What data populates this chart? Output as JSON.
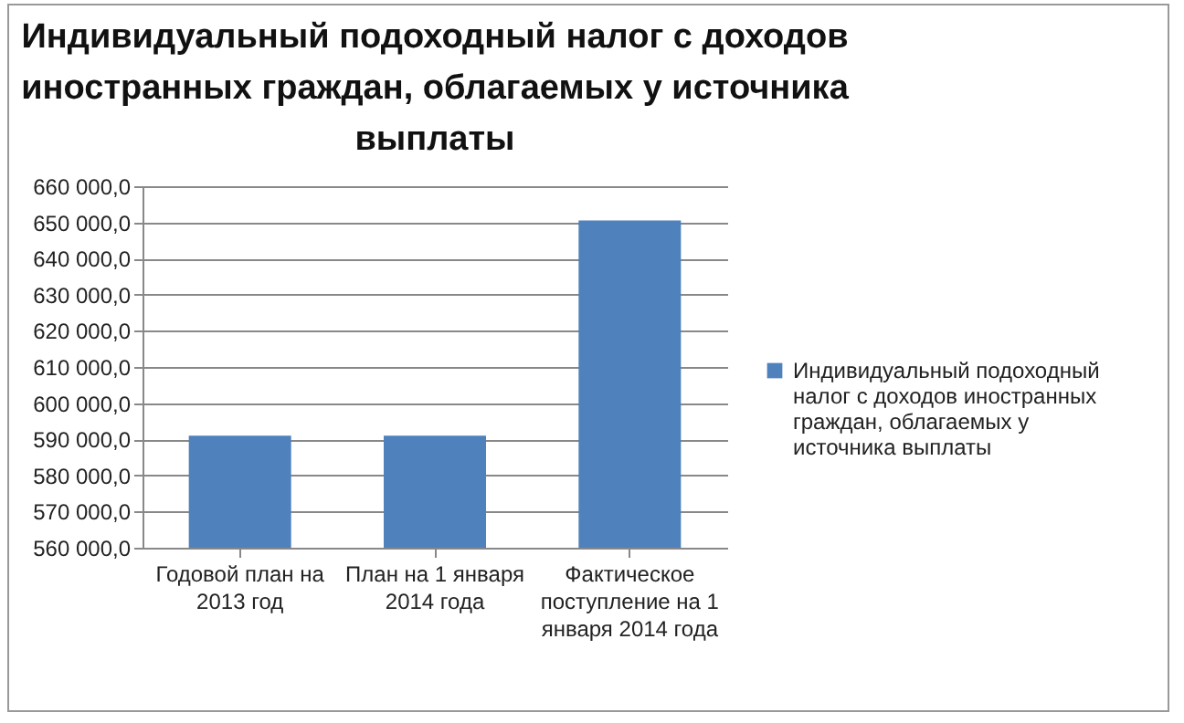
{
  "chart_data": {
    "type": "bar",
    "title": "Индивидуальный подоходный налог с доходов иностранных граждан, облагаемых у источника выплаты",
    "categories": [
      "Годовой  план на 2013  год",
      "План на 1 января 2014 года",
      "Фактическое поступление на  1 января  2014 года"
    ],
    "series": [
      {
        "name": "Индивидуальный подоходный налог с доходов иностранных граждан, облагаемых у источника выплаты",
        "color": "#4f81bd",
        "values": [
          591000,
          591000,
          650500
        ]
      }
    ],
    "ylim": [
      560000,
      660000
    ],
    "yticks": [
      {
        "value": 560000,
        "label": "560 000,0"
      },
      {
        "value": 570000,
        "label": "570 000,0"
      },
      {
        "value": 580000,
        "label": "580 000,0"
      },
      {
        "value": 590000,
        "label": "590 000,0"
      },
      {
        "value": 600000,
        "label": "600 000,0"
      },
      {
        "value": 610000,
        "label": "610 000,0"
      },
      {
        "value": 620000,
        "label": "620 000,0"
      },
      {
        "value": 630000,
        "label": "630 000,0"
      },
      {
        "value": 640000,
        "label": "640 000,0"
      },
      {
        "value": 650000,
        "label": "650 000,0"
      },
      {
        "value": 660000,
        "label": "660 000,0"
      }
    ],
    "grid": "y",
    "legend": "right"
  }
}
